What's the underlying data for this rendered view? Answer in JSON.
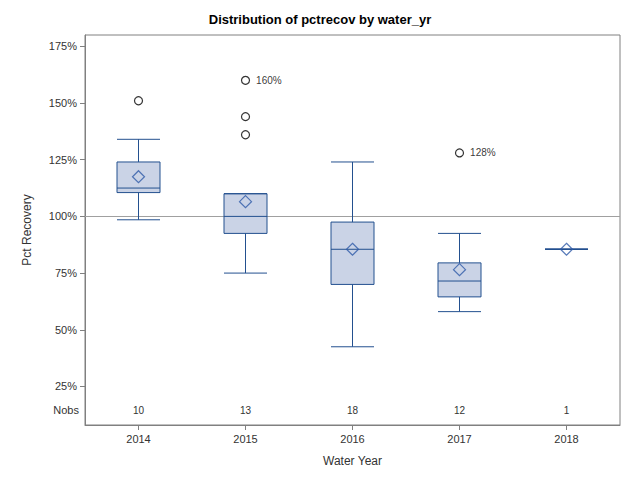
{
  "chart_data": {
    "type": "boxplot",
    "title": "Distribution of pctrecov by water_yr",
    "x_label": "Water Year",
    "y_label": "Pct Recovery",
    "categories": [
      "2014",
      "2015",
      "2016",
      "2017",
      "2018"
    ],
    "series": [
      {
        "type": "boxplot",
        "color": "#cad3e6",
        "values": [
          {
            "min": 98.5,
            "q1": 110.5,
            "median": 112.5,
            "q3": 124,
            "max": 134
          },
          {
            "min": 75,
            "q1": 92.5,
            "median": 100,
            "q3": 110,
            "max": 110
          },
          {
            "min": 42.5,
            "q1": 70,
            "median": 85.5,
            "q3": 97.5,
            "max": 124
          },
          {
            "min": 58,
            "q1": 64.5,
            "median": 71.5,
            "q3": 79.5,
            "max": 92.5
          },
          {
            "min": 85.5,
            "q1": 85.5,
            "median": 85.5,
            "q3": 85.5,
            "max": 85.5
          }
        ]
      },
      {
        "type": "scatter",
        "marker": "diamond",
        "color": "#2e5aa8",
        "values": [
          117.5,
          106.5,
          85.5,
          76.5,
          85.5
        ]
      },
      {
        "type": "scatter",
        "marker": "circle",
        "color": "#000000",
        "values": [
          [
            151
          ],
          [
            136,
            144,
            {
              "value": 160,
              "label": "160%"
            }
          ],
          [],
          [
            {
              "value": 128,
              "label": "128%"
            }
          ],
          []
        ]
      }
    ],
    "nobs": {
      "label": "Nobs",
      "values": [
        10,
        13,
        18,
        12,
        1
      ]
    },
    "reference_line": 100,
    "ylim": [
      8,
      180
    ],
    "yticks": [
      {
        "value": 25,
        "label": "25%"
      },
      {
        "value": 50,
        "label": "50%"
      },
      {
        "value": 75,
        "label": "75%"
      },
      {
        "value": 100,
        "label": "100%"
      },
      {
        "value": 125,
        "label": "125%"
      },
      {
        "value": 150,
        "label": "150%"
      },
      {
        "value": 175,
        "label": "175%"
      }
    ],
    "grid": false
  }
}
